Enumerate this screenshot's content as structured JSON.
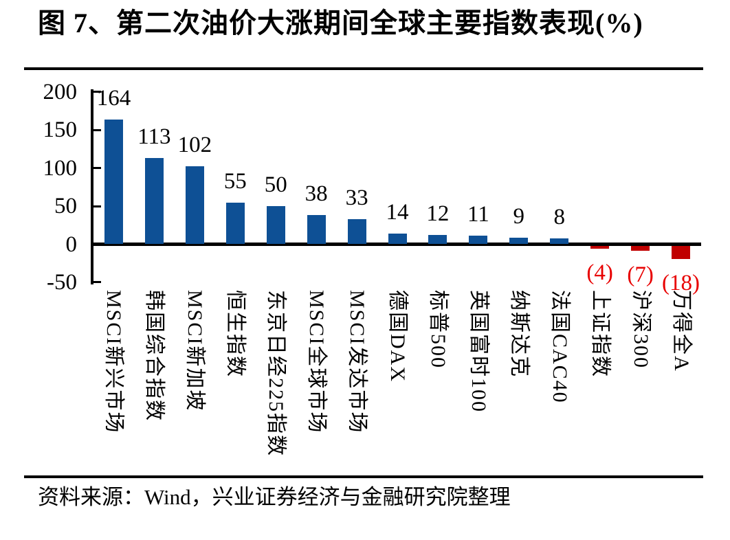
{
  "figure": {
    "title": "图 7、第二次油价大涨期间全球主要指数表现(%)",
    "source": "资料来源：Wind，兴业证券经济与金融研究院整理"
  },
  "chart_data": {
    "type": "bar",
    "title": "图 7、第二次油价大涨期间全球主要指数表现(%)",
    "categories": [
      "MSCI新兴市场",
      "韩国综合指数",
      "MSCI新加坡",
      "恒生指数",
      "东京日经225指数",
      "MSCI全球市场",
      "MSCI发达市场",
      "德国DAX",
      "标普500",
      "英国富时100",
      "纳斯达克",
      "法国CAC40",
      "上证指数",
      "沪深300",
      "万得全A"
    ],
    "values": [
      164,
      113,
      102,
      55,
      50,
      38,
      33,
      14,
      12,
      11,
      9,
      8,
      -4,
      -7,
      -18
    ],
    "value_labels": [
      "164",
      "113",
      "102",
      "55",
      "50",
      "38",
      "33",
      "14",
      "12",
      "11",
      "9",
      "8",
      "(4)",
      "(7)",
      "(18)"
    ],
    "y_ticks": [
      200,
      150,
      100,
      50,
      0,
      -50
    ],
    "ylim": [
      -50,
      200
    ],
    "xlabel": "",
    "ylabel": "",
    "grid": false,
    "legend": false,
    "colors": {
      "bar_positive": "#0E5095",
      "bar_negative": "#C00000",
      "negative_label": "#E80000",
      "axis": "#000000",
      "text": "#000000"
    }
  }
}
